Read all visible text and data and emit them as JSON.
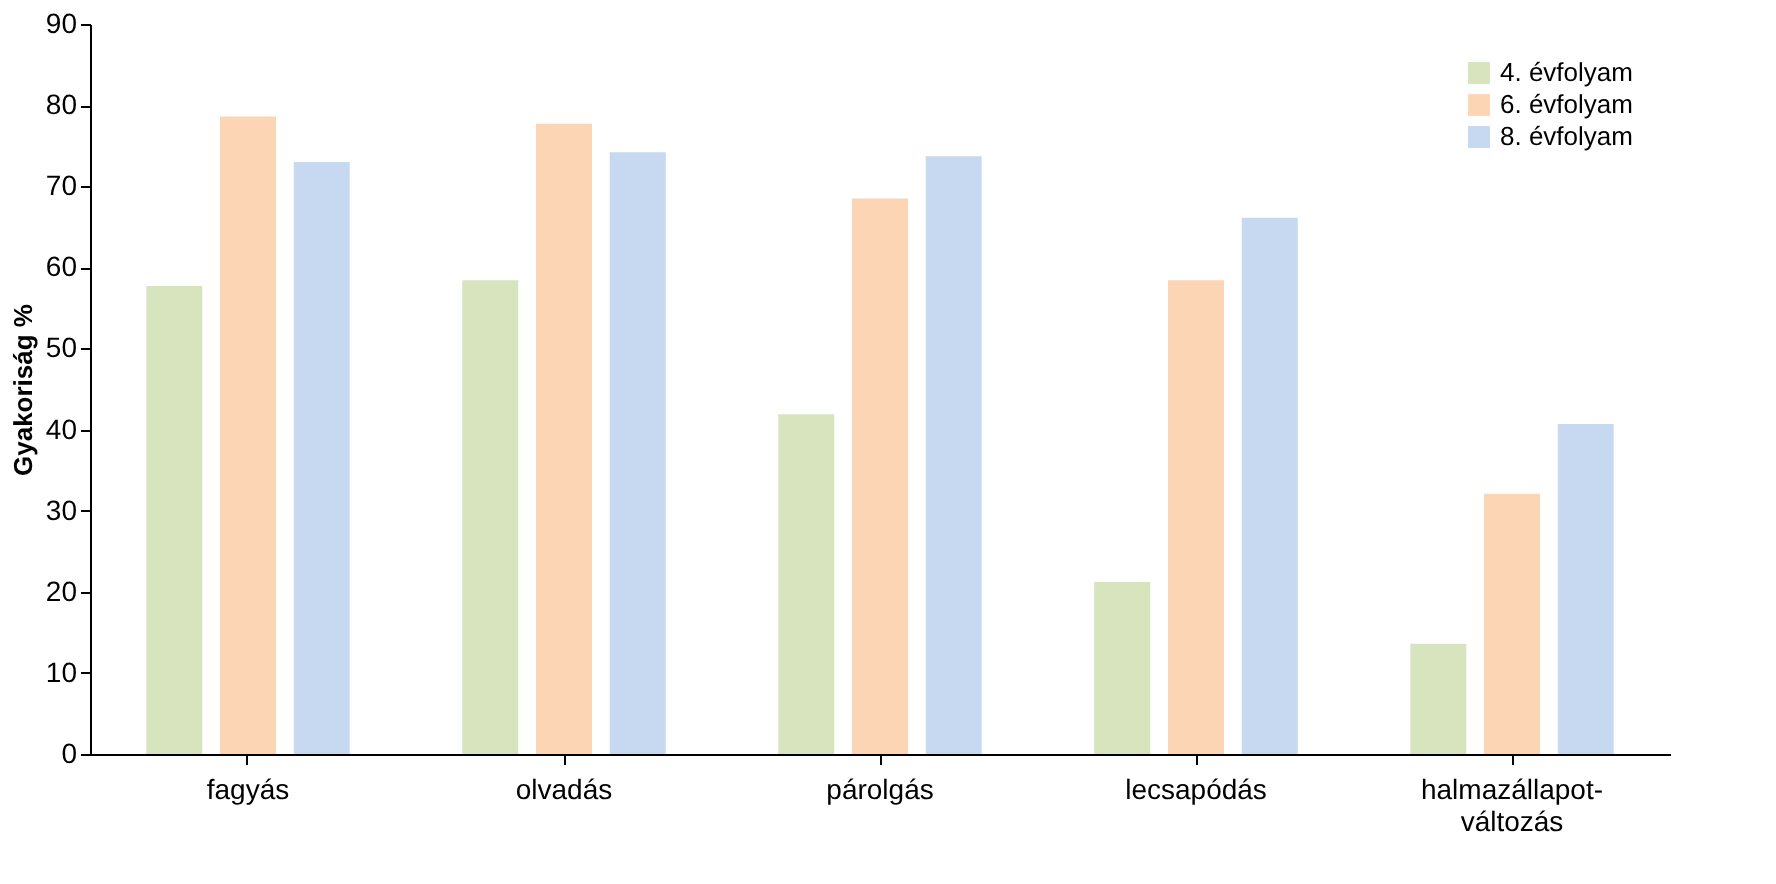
{
  "chart_data": {
    "type": "bar",
    "ylabel": "Gyakoriság %",
    "categories": [
      "fagyás",
      "olvadás",
      "párolgás",
      "lecsapódás",
      "halmazállapot-változás"
    ],
    "series": [
      {
        "name": "4. évfolyam",
        "color": "#d7e4bd",
        "values": [
          57.7,
          58.4,
          41.9,
          21.2,
          13.6
        ]
      },
      {
        "name": "6. évfolyam",
        "color": "#fcd5b5",
        "values": [
          78.6,
          77.7,
          68.5,
          58.4,
          32.1
        ]
      },
      {
        "name": "8. évfolyam",
        "color": "#c6d9f1",
        "values": [
          73.0,
          74.2,
          73.7,
          66.1,
          40.7
        ]
      }
    ],
    "ylim": [
      0,
      90
    ],
    "yticks": [
      0,
      10,
      20,
      30,
      40,
      50,
      60,
      70,
      80,
      90
    ],
    "grid": false,
    "legend": "top right"
  }
}
